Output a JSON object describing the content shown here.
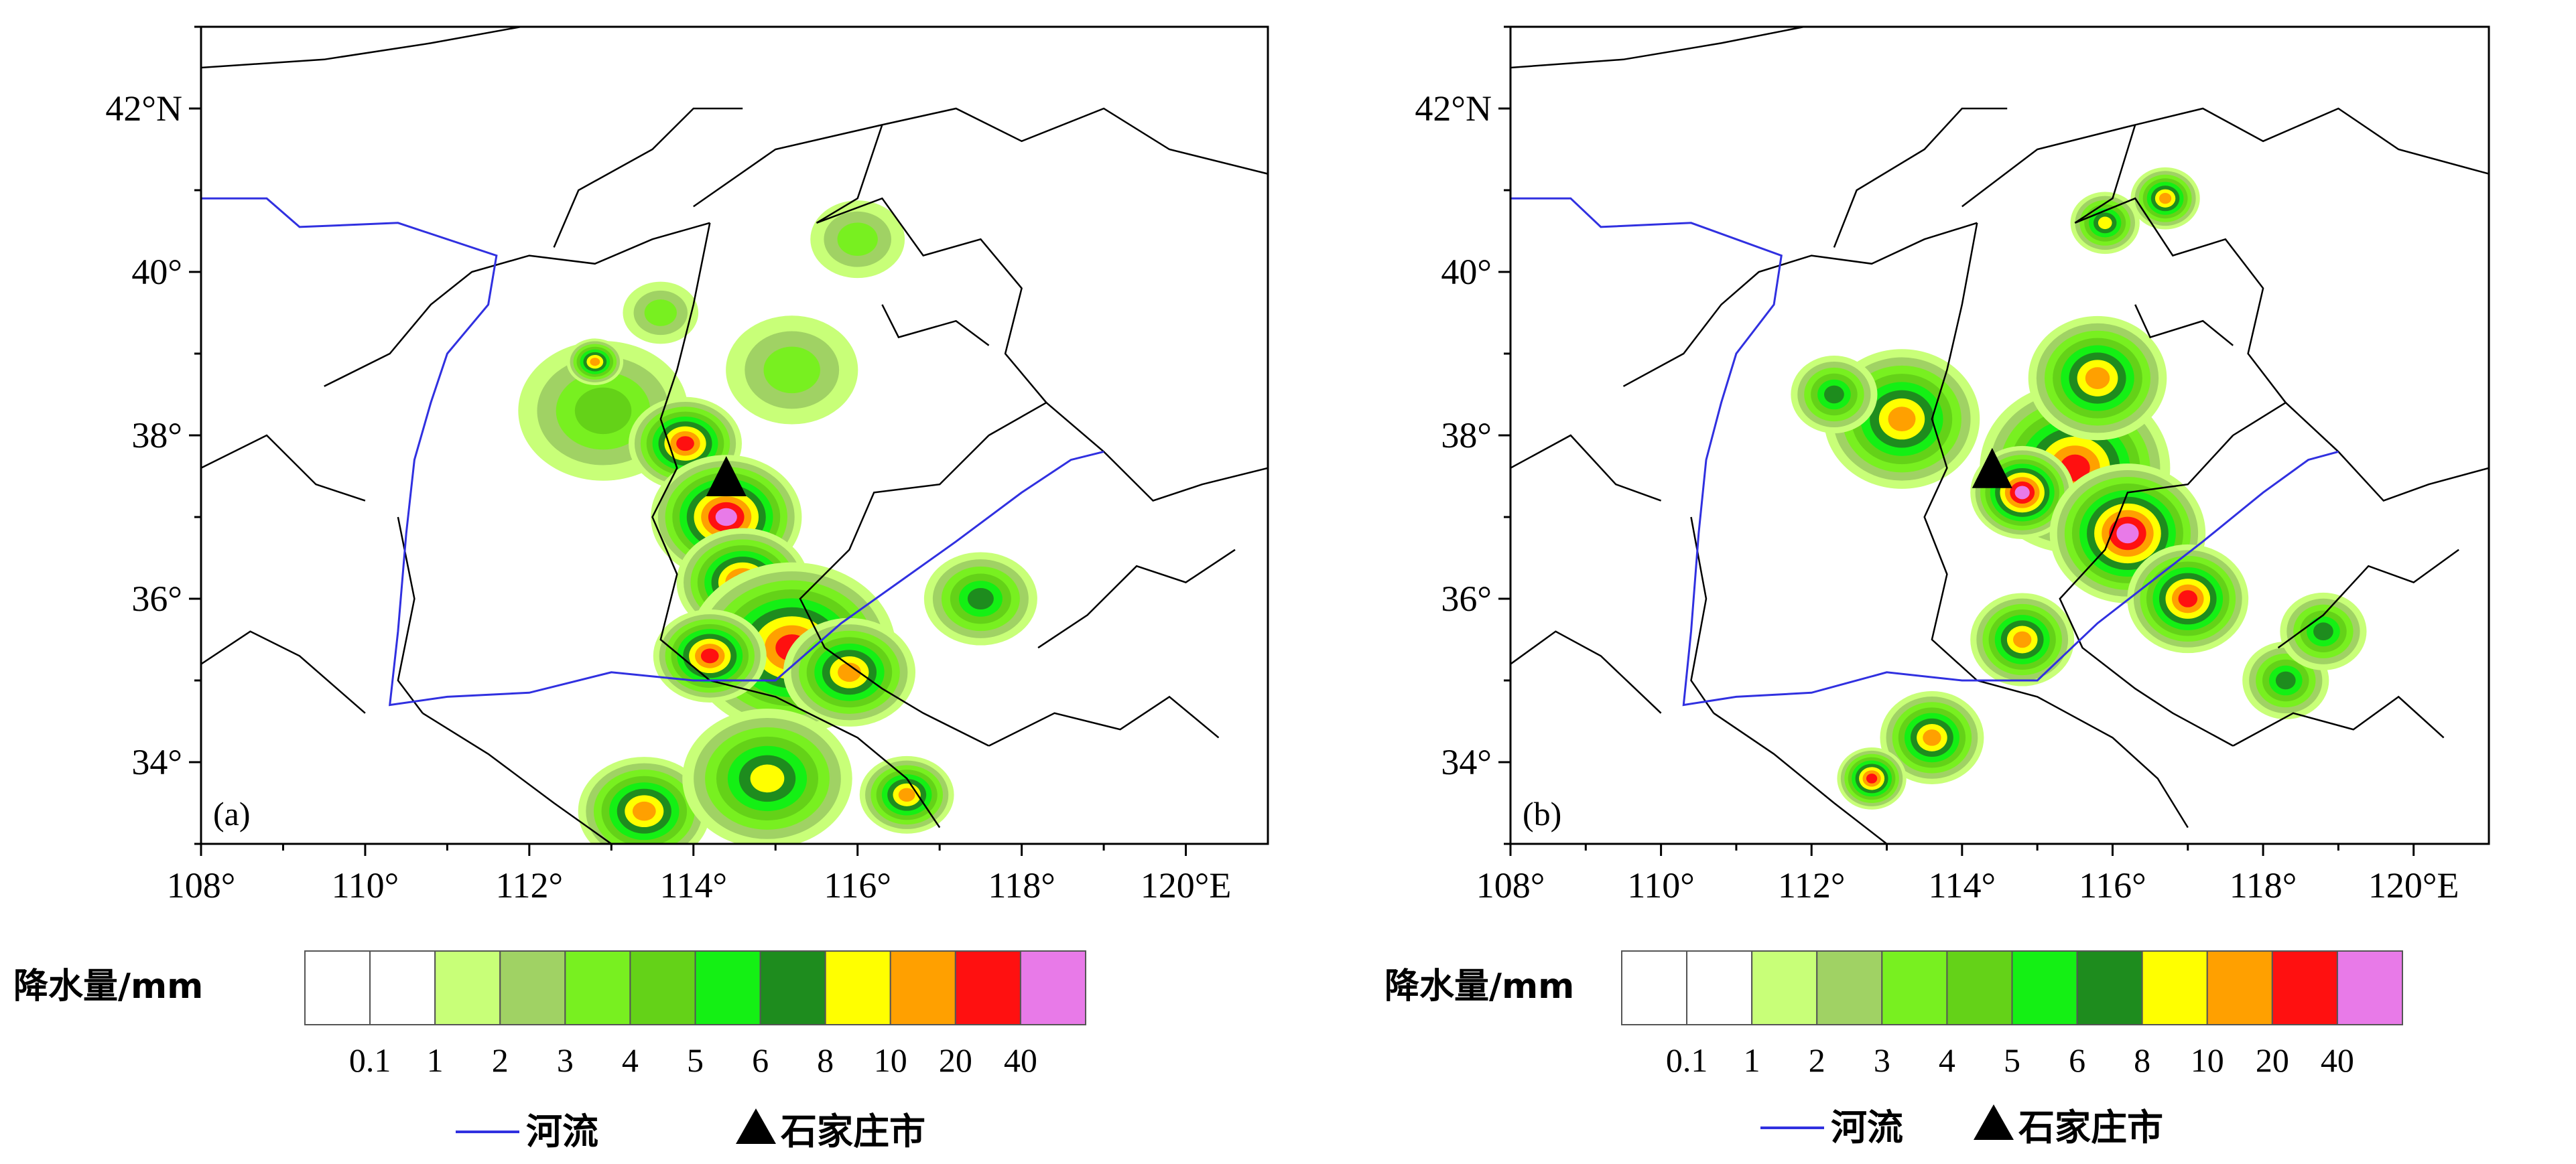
{
  "panels": [
    {
      "id": "a",
      "label": "(a)",
      "x_ticks": [
        "108°",
        "110°",
        "112°",
        "114°",
        "116°",
        "118°",
        "120°E"
      ],
      "y_ticks": [
        "42°N",
        "40°",
        "38°",
        "36°",
        "34°"
      ],
      "lon_range": [
        108,
        121
      ],
      "lat_range": [
        33,
        43
      ],
      "city_lon": 114.4,
      "city_lat": 37.5,
      "blobs": [
        {
          "lon": 112.9,
          "lat": 38.3,
          "r": 0.9,
          "max": 4
        },
        {
          "lon": 113.9,
          "lat": 37.9,
          "r": 0.6,
          "max": 20
        },
        {
          "lon": 114.4,
          "lat": 37.0,
          "r": 0.8,
          "max": 40
        },
        {
          "lon": 114.6,
          "lat": 36.2,
          "r": 0.7,
          "max": 20
        },
        {
          "lon": 115.2,
          "lat": 35.4,
          "r": 1.1,
          "max": 20
        },
        {
          "lon": 114.2,
          "lat": 35.3,
          "r": 0.6,
          "max": 20
        },
        {
          "lon": 115.9,
          "lat": 35.1,
          "r": 0.7,
          "max": 10
        },
        {
          "lon": 113.4,
          "lat": 33.4,
          "r": 0.7,
          "max": 10
        },
        {
          "lon": 114.9,
          "lat": 33.8,
          "r": 0.9,
          "max": 8
        },
        {
          "lon": 116.6,
          "lat": 33.6,
          "r": 0.5,
          "max": 10
        },
        {
          "lon": 117.5,
          "lat": 36.0,
          "r": 0.6,
          "max": 6
        },
        {
          "lon": 115.2,
          "lat": 38.8,
          "r": 0.7,
          "max": 3
        },
        {
          "lon": 113.6,
          "lat": 39.5,
          "r": 0.4,
          "max": 3
        },
        {
          "lon": 112.8,
          "lat": 38.9,
          "r": 0.3,
          "max": 10
        },
        {
          "lon": 116.0,
          "lat": 40.4,
          "r": 0.5,
          "max": 3
        }
      ]
    },
    {
      "id": "b",
      "label": "(b)",
      "x_ticks": [
        "108°",
        "110°",
        "112°",
        "114°",
        "116°",
        "118°",
        "120°E"
      ],
      "y_ticks": [
        "42°N",
        "40°",
        "38°",
        "36°",
        "34°"
      ],
      "lon_range": [
        108,
        121
      ],
      "lat_range": [
        33,
        43
      ],
      "city_lon": 114.4,
      "city_lat": 37.6,
      "blobs": [
        {
          "lon": 115.5,
          "lat": 37.6,
          "r": 1.1,
          "max": 20
        },
        {
          "lon": 114.8,
          "lat": 37.3,
          "r": 0.6,
          "max": 40
        },
        {
          "lon": 116.2,
          "lat": 36.8,
          "r": 0.9,
          "max": 40
        },
        {
          "lon": 117.0,
          "lat": 36.0,
          "r": 0.7,
          "max": 20
        },
        {
          "lon": 113.2,
          "lat": 38.2,
          "r": 0.9,
          "max": 10
        },
        {
          "lon": 115.8,
          "lat": 38.7,
          "r": 0.8,
          "max": 10
        },
        {
          "lon": 114.8,
          "lat": 35.5,
          "r": 0.6,
          "max": 10
        },
        {
          "lon": 118.3,
          "lat": 35.0,
          "r": 0.5,
          "max": 6
        },
        {
          "lon": 113.6,
          "lat": 34.3,
          "r": 0.6,
          "max": 10
        },
        {
          "lon": 112.8,
          "lat": 33.8,
          "r": 0.4,
          "max": 20
        },
        {
          "lon": 116.7,
          "lat": 40.9,
          "r": 0.4,
          "max": 10
        },
        {
          "lon": 115.9,
          "lat": 40.6,
          "r": 0.4,
          "max": 8
        },
        {
          "lon": 112.3,
          "lat": 38.5,
          "r": 0.5,
          "max": 6
        },
        {
          "lon": 118.8,
          "lat": 35.6,
          "r": 0.5,
          "max": 6
        }
      ]
    }
  ],
  "colorbar": {
    "title": "降水量/mm",
    "values": [
      "0.1",
      "1",
      "2",
      "3",
      "4",
      "5",
      "6",
      "8",
      "10",
      "20",
      "40"
    ],
    "colors": [
      "#ffffff",
      "#ffffff",
      "#c8ff78",
      "#a0d264",
      "#78f020",
      "#64d218",
      "#14f014",
      "#1e8c1e",
      "#ffff00",
      "#ffa000",
      "#ff1010",
      "#e87ae8"
    ]
  },
  "legend": {
    "river_label": "河流",
    "city_label": "石家庄市"
  },
  "colors": {
    "river": "#3030e0",
    "border": "#000000"
  }
}
